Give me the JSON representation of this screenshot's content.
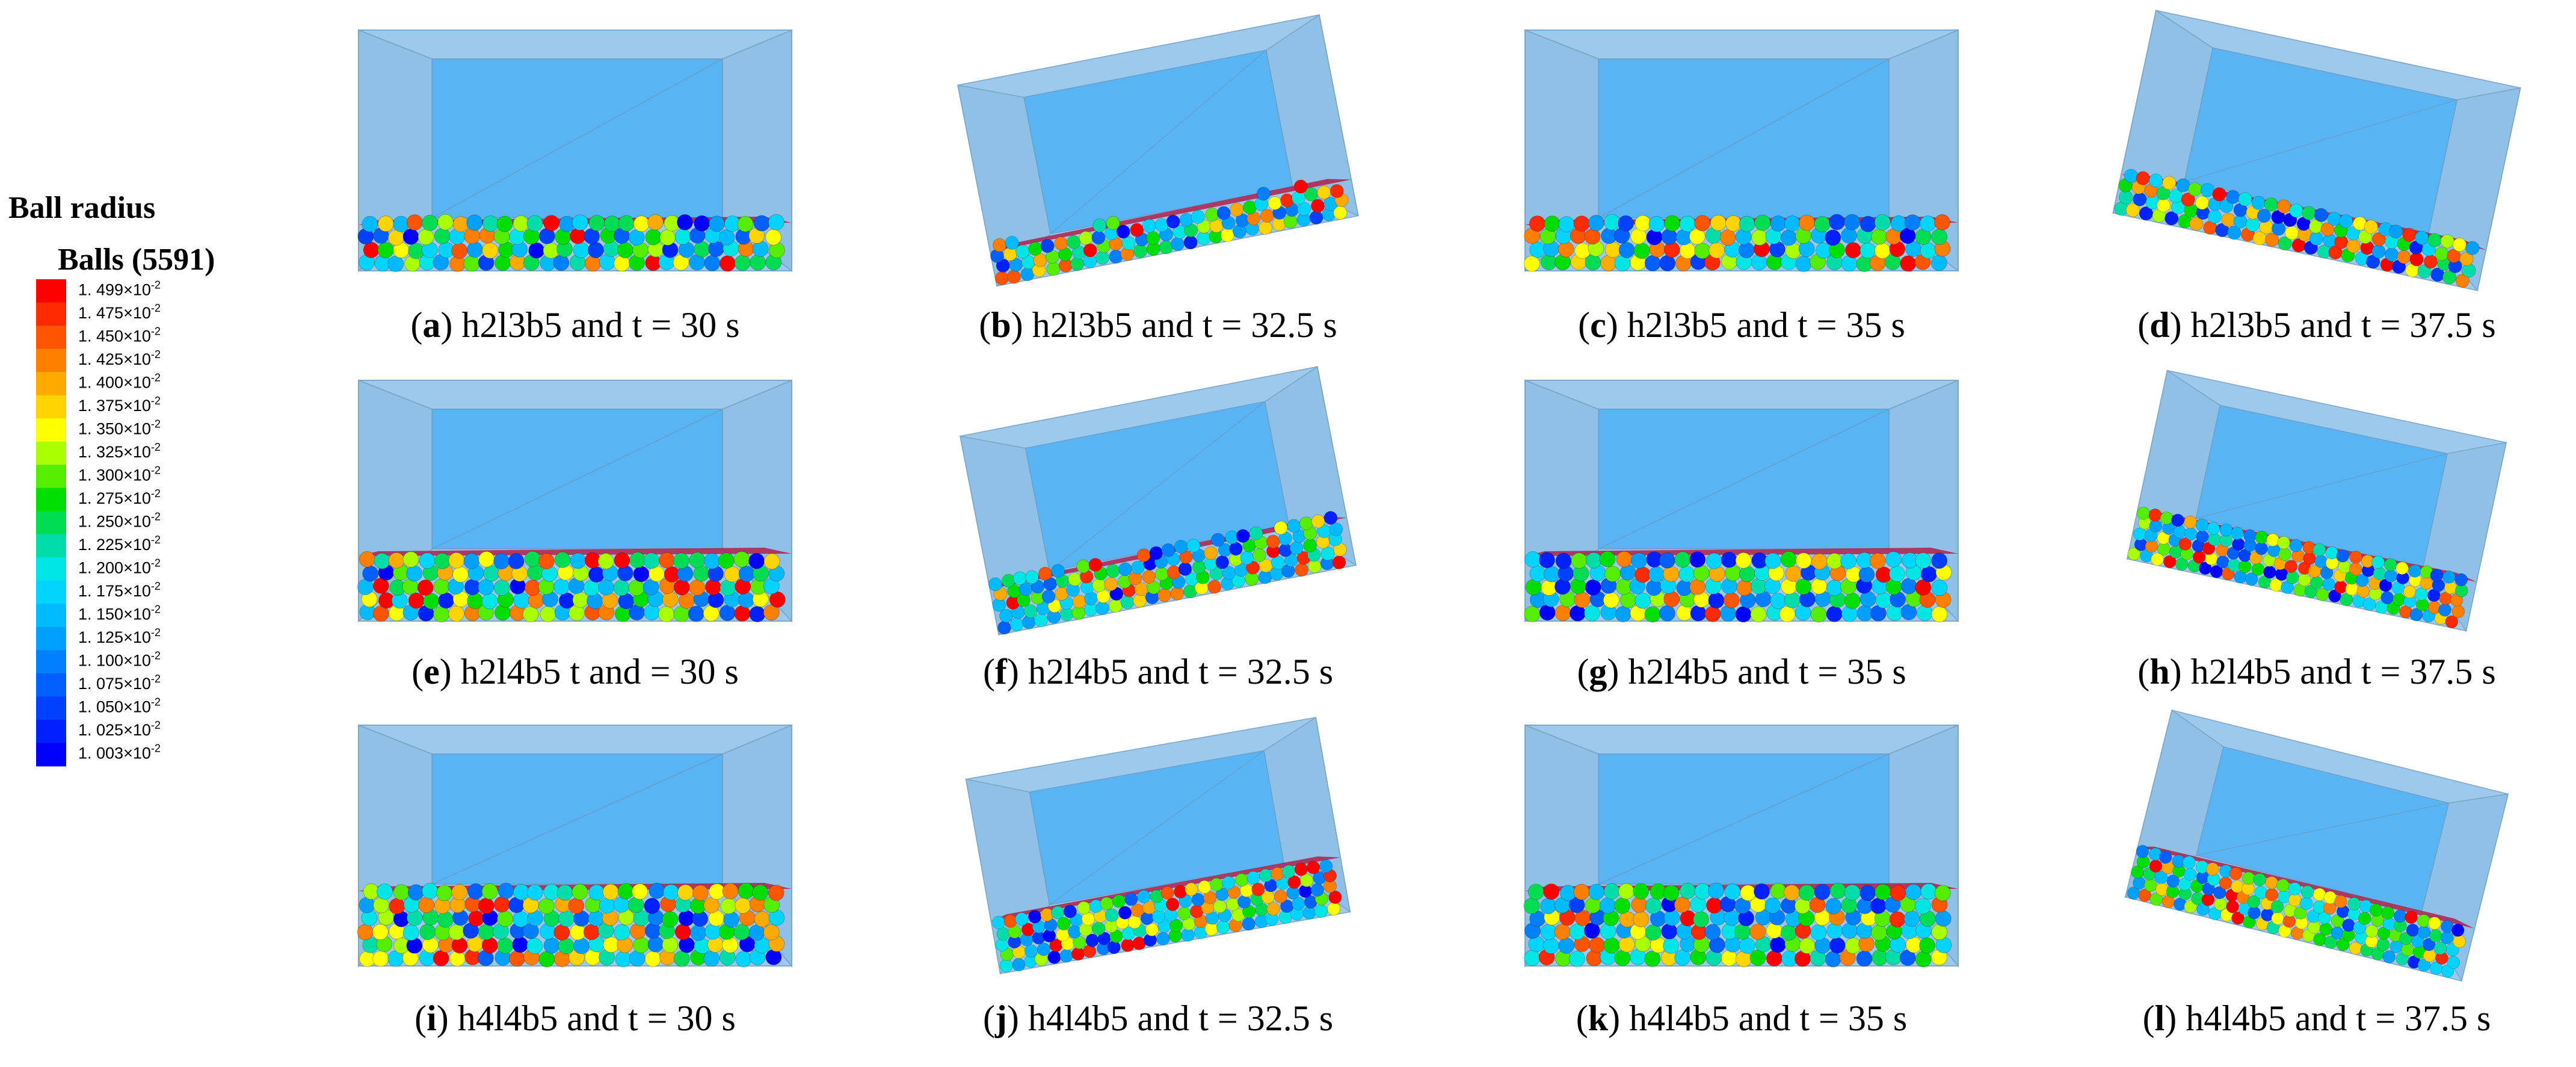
{
  "legend": {
    "title": "Ball radius",
    "subtitle": "Balls (5591)",
    "levels": [
      {
        "label": "1. 499×10",
        "exp": "-2",
        "color": "#ff0000"
      },
      {
        "label": "1. 475×10",
        "exp": "-2",
        "color": "#ff2a00"
      },
      {
        "label": "1. 450×10",
        "exp": "-2",
        "color": "#ff5500"
      },
      {
        "label": "1. 425×10",
        "exp": "-2",
        "color": "#ff7f00"
      },
      {
        "label": "1. 400×10",
        "exp": "-2",
        "color": "#ffaa00"
      },
      {
        "label": "1. 375×10",
        "exp": "-2",
        "color": "#ffd400"
      },
      {
        "label": "1. 350×10",
        "exp": "-2",
        "color": "#ffff00"
      },
      {
        "label": "1. 325×10",
        "exp": "-2",
        "color": "#aaff00"
      },
      {
        "label": "1. 300×10",
        "exp": "-2",
        "color": "#55ee00"
      },
      {
        "label": "1. 275×10",
        "exp": "-2",
        "color": "#00dd00"
      },
      {
        "label": "1. 250×10",
        "exp": "-2",
        "color": "#00dd55"
      },
      {
        "label": "1. 225×10",
        "exp": "-2",
        "color": "#00ddaa"
      },
      {
        "label": "1. 200×10",
        "exp": "-2",
        "color": "#00e5e5"
      },
      {
        "label": "1. 175×10",
        "exp": "-2",
        "color": "#00d4ff"
      },
      {
        "label": "1. 150×10",
        "exp": "-2",
        "color": "#00bbff"
      },
      {
        "label": "1. 125×10",
        "exp": "-2",
        "color": "#00a0ff"
      },
      {
        "label": "1. 100×10",
        "exp": "-2",
        "color": "#0080ff"
      },
      {
        "label": "1. 075×10",
        "exp": "-2",
        "color": "#0060ff"
      },
      {
        "label": "1. 050×10",
        "exp": "-2",
        "color": "#0040ff"
      },
      {
        "label": "1. 025×10",
        "exp": "-2",
        "color": "#0020ff"
      },
      {
        "label": "1. 003×10",
        "exp": "-2",
        "color": "#0000ff"
      }
    ]
  },
  "panels": [
    {
      "caption": [
        "(",
        "a",
        ") h2l3b5 and t = 30 s"
      ]
    },
    {
      "caption": [
        "(",
        "b",
        ") h2l3b5 and t = 32.5 s"
      ]
    },
    {
      "caption": [
        "(",
        "c",
        ") h2l3b5 and t = 35 s"
      ]
    },
    {
      "caption": [
        "(",
        "d",
        ") h2l3b5 and t = 37.5 s"
      ]
    },
    {
      "caption": [
        "(",
        "e",
        ") h2l4b5 t and = 30 s"
      ]
    },
    {
      "caption": [
        "(",
        "f",
        ") h2l4b5 and t = 32.5 s"
      ]
    },
    {
      "caption": [
        "(",
        "g",
        ") h2l4b5 and t = 35 s"
      ]
    },
    {
      "caption": [
        "(",
        "h",
        ") h2l4b5 and t = 37.5 s"
      ]
    },
    {
      "caption": [
        "(",
        "i",
        ") h4l4b5 and t = 30 s"
      ]
    },
    {
      "caption": [
        "(",
        "j",
        ") h4l4b5 and t = 32.5 s"
      ]
    },
    {
      "caption": [
        "(",
        "k",
        ") h4l4b5 and t = 35 s"
      ]
    },
    {
      "caption": [
        "(",
        "l",
        ") h4l4b5 and t = 37.5 s"
      ]
    }
  ]
}
